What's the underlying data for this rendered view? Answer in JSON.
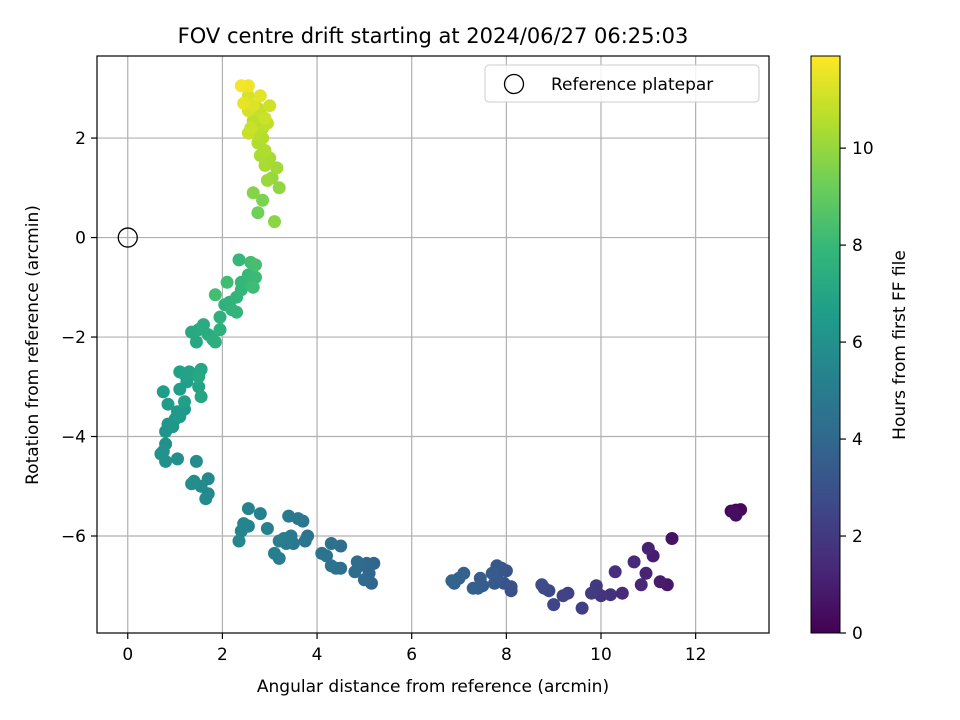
{
  "chart_data": {
    "type": "scatter",
    "title": "FOV centre drift starting at 2024/06/27 06:25:03",
    "xlabel": "Angular distance from reference (arcmin)",
    "ylabel": "Rotation from reference (arcmin)",
    "xlim": [
      -0.65,
      13.55
    ],
    "ylim": [
      -7.95,
      3.65
    ],
    "xticks": [
      0,
      2,
      4,
      6,
      8,
      10,
      12
    ],
    "yticks": [
      2,
      0,
      -2,
      -4,
      -6
    ],
    "grid": true,
    "legend": {
      "position": "top-right",
      "entries": [
        "Reference platepar"
      ]
    },
    "reference_point": {
      "x": 0,
      "y": 0,
      "marker": "hollow-circle"
    },
    "colorbar": {
      "label": "Hours from first FF file",
      "colormap": "viridis",
      "range": [
        0,
        11.9
      ],
      "ticks": [
        0,
        2,
        4,
        6,
        8,
        10
      ]
    },
    "colormap_stops": [
      "#440154",
      "#482878",
      "#3e4989",
      "#31688e",
      "#26828e",
      "#1f9e89",
      "#35b779",
      "#6ece58",
      "#b5de2b",
      "#fde725"
    ],
    "points": [
      [
        12.85,
        -5.48,
        0.05
      ],
      [
        12.75,
        -5.5,
        0.15
      ],
      [
        12.95,
        -5.47,
        0.25
      ],
      [
        12.85,
        -5.58,
        0.35
      ],
      [
        12.8,
        -5.52,
        0.45
      ],
      [
        11.5,
        -6.05,
        0.6
      ],
      [
        11.4,
        -6.98,
        0.75
      ],
      [
        11.25,
        -6.92,
        0.9
      ],
      [
        11.1,
        -6.4,
        1.0
      ],
      [
        11.0,
        -6.25,
        1.1
      ],
      [
        10.95,
        -6.75,
        1.2
      ],
      [
        10.85,
        -6.98,
        1.3
      ],
      [
        10.7,
        -6.52,
        1.4
      ],
      [
        10.45,
        -7.15,
        1.5
      ],
      [
        10.3,
        -6.72,
        1.6
      ],
      [
        10.2,
        -7.18,
        1.7
      ],
      [
        10.0,
        -7.2,
        1.8
      ],
      [
        9.9,
        -7.1,
        1.9
      ],
      [
        9.9,
        -7.0,
        2.0
      ],
      [
        9.8,
        -7.15,
        2.1
      ],
      [
        9.6,
        -7.45,
        2.2
      ],
      [
        9.3,
        -7.15,
        2.3
      ],
      [
        9.2,
        -7.2,
        2.4
      ],
      [
        9.0,
        -7.38,
        2.5
      ],
      [
        8.9,
        -7.1,
        2.6
      ],
      [
        8.8,
        -7.05,
        2.7
      ],
      [
        8.75,
        -6.98,
        2.8
      ],
      [
        8.1,
        -7.1,
        2.9
      ],
      [
        8.1,
        -7.02,
        3.0
      ],
      [
        8.0,
        -6.7,
        3.05
      ],
      [
        7.95,
        -6.95,
        3.1
      ],
      [
        7.9,
        -6.65,
        3.2
      ],
      [
        7.8,
        -6.85,
        3.25
      ],
      [
        7.8,
        -6.6,
        3.3
      ],
      [
        7.75,
        -6.95,
        3.35
      ],
      [
        7.7,
        -6.75,
        3.4
      ],
      [
        7.5,
        -7.0,
        3.45
      ],
      [
        7.45,
        -6.85,
        3.5
      ],
      [
        7.4,
        -7.05,
        3.55
      ],
      [
        7.3,
        -7.05,
        3.6
      ],
      [
        7.1,
        -6.75,
        3.65
      ],
      [
        7.0,
        -6.85,
        3.7
      ],
      [
        6.9,
        -6.95,
        3.75
      ],
      [
        6.85,
        -6.9,
        3.8
      ],
      [
        5.2,
        -6.55,
        3.85
      ],
      [
        5.15,
        -6.95,
        3.9
      ],
      [
        5.1,
        -6.75,
        3.95
      ],
      [
        5.05,
        -6.55,
        4.0
      ],
      [
        5.0,
        -6.88,
        4.05
      ],
      [
        4.9,
        -6.6,
        4.1
      ],
      [
        4.85,
        -6.52,
        4.15
      ],
      [
        4.8,
        -6.72,
        4.2
      ],
      [
        4.5,
        -6.2,
        4.25
      ],
      [
        4.5,
        -6.65,
        4.3
      ],
      [
        4.4,
        -6.65,
        4.35
      ],
      [
        4.3,
        -6.15,
        4.4
      ],
      [
        4.3,
        -6.6,
        4.45
      ],
      [
        4.2,
        -6.4,
        4.5
      ],
      [
        4.1,
        -6.35,
        4.55
      ],
      [
        3.8,
        -6.0,
        4.6
      ],
      [
        3.75,
        -6.1,
        4.65
      ],
      [
        3.7,
        -5.7,
        4.7
      ],
      [
        3.6,
        -5.65,
        4.75
      ],
      [
        3.5,
        -6.15,
        4.8
      ],
      [
        3.45,
        -6.0,
        4.85
      ],
      [
        3.4,
        -5.6,
        4.9
      ],
      [
        3.35,
        -6.15,
        4.95
      ],
      [
        3.3,
        -6.05,
        5.0
      ],
      [
        3.2,
        -6.1,
        5.05
      ],
      [
        3.2,
        -6.45,
        5.1
      ],
      [
        3.1,
        -6.35,
        5.15
      ],
      [
        2.95,
        -5.85,
        5.2
      ],
      [
        2.8,
        -5.55,
        5.25
      ],
      [
        2.55,
        -5.8,
        5.3
      ],
      [
        2.55,
        -5.45,
        5.35
      ],
      [
        2.45,
        -5.75,
        5.4
      ],
      [
        2.4,
        -5.9,
        5.45
      ],
      [
        2.35,
        -6.1,
        5.5
      ],
      [
        1.7,
        -4.85,
        5.55
      ],
      [
        1.7,
        -5.15,
        5.6
      ],
      [
        1.65,
        -5.25,
        5.65
      ],
      [
        1.55,
        -5.0,
        5.7
      ],
      [
        1.45,
        -4.5,
        5.75
      ],
      [
        1.4,
        -4.9,
        5.8
      ],
      [
        1.35,
        -4.95,
        5.85
      ],
      [
        1.05,
        -4.45,
        5.9
      ],
      [
        0.8,
        -4.5,
        5.95
      ],
      [
        0.8,
        -4.15,
        6.0
      ],
      [
        0.75,
        -4.3,
        6.05
      ],
      [
        0.7,
        -4.35,
        6.1
      ],
      [
        0.8,
        -3.9,
        6.15
      ],
      [
        0.85,
        -3.75,
        6.2
      ],
      [
        0.95,
        -3.8,
        6.25
      ],
      [
        1.0,
        -3.65,
        6.3
      ],
      [
        1.05,
        -3.5,
        6.35
      ],
      [
        1.1,
        -3.6,
        6.4
      ],
      [
        1.2,
        -3.45,
        6.45
      ],
      [
        0.85,
        -3.35,
        6.5
      ],
      [
        0.75,
        -3.1,
        6.55
      ],
      [
        1.1,
        -3.05,
        6.6
      ],
      [
        1.2,
        -3.3,
        6.65
      ],
      [
        1.25,
        -2.9,
        6.7
      ],
      [
        1.1,
        -2.7,
        6.75
      ],
      [
        1.2,
        -2.75,
        6.8
      ],
      [
        1.3,
        -2.7,
        6.85
      ],
      [
        1.45,
        -2.75,
        6.9
      ],
      [
        1.5,
        -3.0,
        6.95
      ],
      [
        1.55,
        -3.2,
        7.0
      ],
      [
        1.55,
        -2.65,
        7.05
      ],
      [
        1.5,
        -2.8,
        7.1
      ],
      [
        1.45,
        -2.1,
        7.15
      ],
      [
        1.35,
        -1.9,
        7.2
      ],
      [
        1.5,
        -1.85,
        7.25
      ],
      [
        1.6,
        -1.75,
        7.3
      ],
      [
        1.7,
        -1.95,
        7.35
      ],
      [
        1.8,
        -2.05,
        7.4
      ],
      [
        1.85,
        -2.1,
        7.45
      ],
      [
        1.95,
        -1.85,
        7.5
      ],
      [
        1.95,
        -1.6,
        7.55
      ],
      [
        2.05,
        -1.35,
        7.6
      ],
      [
        2.15,
        -1.3,
        7.65
      ],
      [
        2.2,
        -1.45,
        7.7
      ],
      [
        2.3,
        -1.5,
        7.75
      ],
      [
        2.3,
        -1.2,
        7.8
      ],
      [
        2.4,
        -1.05,
        7.85
      ],
      [
        2.4,
        -0.9,
        7.9
      ],
      [
        2.35,
        -0.45,
        7.95
      ],
      [
        2.55,
        -0.75,
        8.0
      ],
      [
        2.6,
        -0.95,
        8.05
      ],
      [
        2.7,
        -0.8,
        8.1
      ],
      [
        2.65,
        -1.0,
        8.15
      ],
      [
        2.1,
        -0.9,
        8.2
      ],
      [
        1.85,
        -1.15,
        8.25
      ],
      [
        2.6,
        -0.5,
        8.3
      ],
      [
        2.7,
        -0.55,
        8.35
      ],
      [
        2.75,
        0.5,
        9.3
      ],
      [
        2.85,
        0.75,
        9.5
      ],
      [
        2.65,
        0.9,
        9.7
      ],
      [
        3.1,
        0.32,
        9.8
      ],
      [
        3.2,
        1.0,
        9.9
      ],
      [
        3.05,
        1.2,
        10.0
      ],
      [
        2.95,
        1.15,
        10.1
      ],
      [
        3.15,
        1.4,
        10.2
      ],
      [
        3.0,
        1.6,
        10.3
      ],
      [
        2.9,
        1.45,
        10.35
      ],
      [
        2.8,
        1.65,
        10.4
      ],
      [
        2.9,
        1.75,
        10.45
      ],
      [
        2.75,
        1.9,
        10.5
      ],
      [
        2.85,
        2.0,
        10.55
      ],
      [
        2.7,
        2.1,
        10.6
      ],
      [
        2.85,
        2.2,
        10.65
      ],
      [
        2.65,
        2.35,
        10.7
      ],
      [
        2.95,
        2.3,
        10.75
      ],
      [
        2.8,
        2.5,
        10.8
      ],
      [
        2.75,
        2.6,
        10.85
      ],
      [
        2.55,
        2.1,
        10.9
      ],
      [
        2.6,
        2.2,
        10.95
      ],
      [
        2.9,
        2.4,
        11.0
      ],
      [
        3.0,
        2.65,
        11.05
      ],
      [
        2.55,
        2.55,
        11.1
      ],
      [
        2.55,
        2.85,
        11.2
      ],
      [
        2.65,
        2.65,
        11.3
      ],
      [
        2.8,
        2.85,
        11.4
      ],
      [
        2.45,
        2.7,
        11.5
      ],
      [
        2.55,
        3.05,
        11.6
      ],
      [
        2.4,
        3.05,
        11.7
      ]
    ]
  }
}
